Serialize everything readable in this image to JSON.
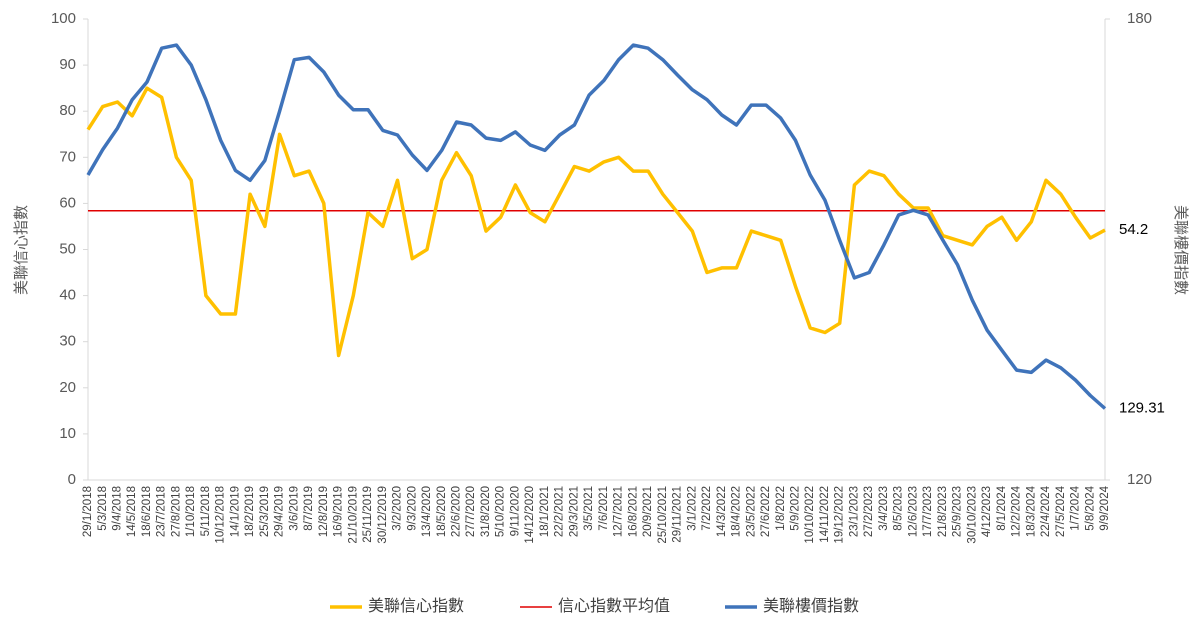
{
  "chart_data": {
    "type": "line",
    "y_label": "美聯信心指數",
    "y2_label": "美聯樓價指數",
    "categories": [
      "29/1/2018",
      "5/3/2018",
      "9/4/2018",
      "14/5/2018",
      "18/6/2018",
      "23/7/2018",
      "27/8/2018",
      "1/10/2018",
      "5/11/2018",
      "10/12/2018",
      "14/1/2019",
      "18/2/2019",
      "25/3/2019",
      "29/4/2019",
      "3/6/2019",
      "8/7/2019",
      "12/8/2019",
      "16/9/2019",
      "21/10/2019",
      "25/11/2019",
      "30/12/2019",
      "3/2/2020",
      "9/3/2020",
      "13/4/2020",
      "18/5/2020",
      "22/6/2020",
      "27/7/2020",
      "31/8/2020",
      "5/10/2020",
      "9/11/2020",
      "14/12/2020",
      "18/1/2021",
      "22/2/2021",
      "29/3/2021",
      "3/5/2021",
      "7/6/2021",
      "12/7/2021",
      "16/8/2021",
      "20/9/2021",
      "25/10/2021",
      "29/11/2021",
      "3/1/2022",
      "7/2/2022",
      "14/3/2022",
      "18/4/2022",
      "23/5/2022",
      "27/6/2022",
      "1/8/2022",
      "5/9/2022",
      "10/10/2022",
      "14/11/2022",
      "19/12/2022",
      "23/1/2023",
      "27/2/2023",
      "3/4/2023",
      "8/5/2023",
      "12/6/2023",
      "17/7/2023",
      "21/8/2023",
      "25/9/2023",
      "30/10/2023",
      "4/12/2023",
      "8/1/2024",
      "12/2/2024",
      "18/3/2024",
      "22/4/2024",
      "27/5/2024",
      "1/7/2024",
      "5/8/2024",
      "9/9/2024"
    ],
    "series": [
      {
        "name": "美聯信心指數",
        "color": "#FFC000",
        "values": [
          76,
          81,
          82,
          79,
          85,
          83,
          70,
          65,
          40,
          36,
          36,
          62,
          55,
          75,
          66,
          67,
          60,
          27,
          40,
          58,
          55,
          65,
          48,
          50,
          65,
          71,
          66,
          54,
          57,
          64,
          58,
          56,
          62,
          68,
          67,
          69,
          70,
          67,
          67,
          62,
          58,
          54,
          45,
          46,
          46,
          54,
          53,
          52,
          42,
          33,
          32,
          34,
          64,
          67,
          66,
          62,
          59,
          59,
          53,
          52,
          51,
          55,
          57,
          52,
          56,
          65,
          62,
          57,
          52.5,
          54.2
        ]
      },
      {
        "name": "美聯樓價指數",
        "color": "#3F73BA",
        "axis": "y2",
        "values": [
          159.7,
          163,
          165.8,
          169.5,
          171.8,
          176.2,
          176.6,
          174,
          169.5,
          164.2,
          160.3,
          159,
          161.6,
          168,
          174.7,
          175,
          173.1,
          170.1,
          168.2,
          168.2,
          165.5,
          164.9,
          162.3,
          160.3,
          162.9,
          166.6,
          166.2,
          164.5,
          164.2,
          165.3,
          163.6,
          162.9,
          164.9,
          166.2,
          170.1,
          172,
          174.7,
          176.6,
          176.2,
          174.7,
          172.7,
          170.8,
          169.5,
          167.5,
          166.2,
          168.8,
          168.8,
          167.1,
          164.2,
          159.7,
          156.4,
          151.2,
          146.3,
          147,
          150.6,
          154.5,
          155.1,
          154.5,
          151.2,
          148,
          143.4,
          139.5,
          136.9,
          134.3,
          134,
          135.6,
          134.6,
          133,
          131,
          129.31
        ]
      }
    ],
    "reference_line": {
      "name": "信心指數平均值",
      "color": "#E00000",
      "value": 58.4
    },
    "ylim": [
      0,
      100
    ],
    "yticks": [
      0,
      10,
      20,
      30,
      40,
      50,
      60,
      70,
      80,
      90,
      100
    ],
    "y2lim": [
      120,
      180
    ],
    "y2ticks": [
      120,
      180
    ]
  }
}
